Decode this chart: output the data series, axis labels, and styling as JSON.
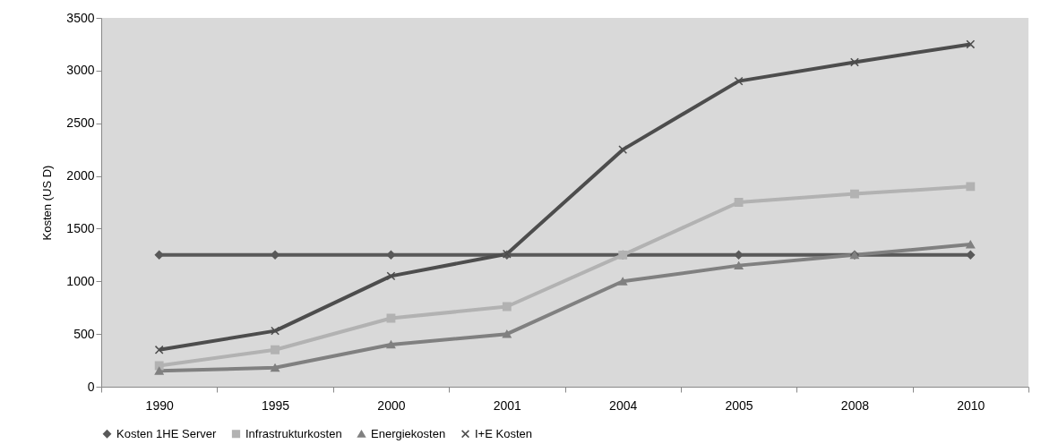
{
  "chart_data": {
    "type": "line",
    "ylabel": "Kosten (US D)",
    "categories": [
      "1990",
      "1995",
      "2000",
      "2001",
      "2004",
      "2005",
      "2008",
      "2010"
    ],
    "series": [
      {
        "name": "Kosten 1HE Server",
        "color": "#595959",
        "marker": "diamond",
        "values": [
          1250,
          1250,
          1250,
          1250,
          1250,
          1250,
          1250,
          1250
        ]
      },
      {
        "name": "Infrastrukturkosten",
        "color": "#b2b2b2",
        "marker": "square",
        "values": [
          200,
          350,
          650,
          760,
          1250,
          1750,
          1830,
          1900
        ]
      },
      {
        "name": "Energiekosten",
        "color": "#808080",
        "marker": "triangle",
        "values": [
          150,
          180,
          400,
          500,
          1000,
          1150,
          1250,
          1350
        ]
      },
      {
        "name": "I+E Kosten",
        "color": "#4d4d4d",
        "marker": "cross",
        "values": [
          350,
          530,
          1050,
          1260,
          2250,
          2900,
          3080,
          3250
        ]
      }
    ],
    "ylim": [
      0,
      3500
    ],
    "yticks": [
      0,
      500,
      1000,
      1500,
      2000,
      2500,
      3000,
      3500
    ],
    "grid": false,
    "legend": "bottom",
    "line_style": "solid"
  }
}
